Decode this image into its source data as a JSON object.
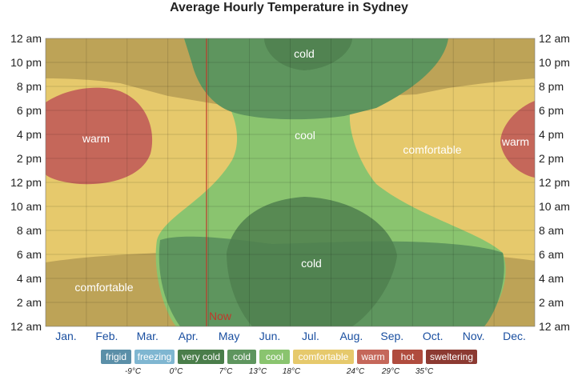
{
  "title": "Average Hourly Temperature in Sydney",
  "colors": {
    "comfortable": "#e6c96c",
    "warm": "#c5675a",
    "cool": "#8ac46f",
    "cold": "#5e955e",
    "grid": "#9c8a52"
  },
  "chart_data": {
    "type": "heatmap",
    "title": "Average Hourly Temperature in Sydney",
    "categories": [
      "Jan.",
      "Feb.",
      "Mar.",
      "Apr.",
      "May",
      "Jun.",
      "Jul.",
      "Aug.",
      "Sep.",
      "Oct.",
      "Nov.",
      "Dec."
    ],
    "y_ticks": [
      "12 am",
      "2 am",
      "4 am",
      "6 am",
      "8 am",
      "10 am",
      "12 pm",
      "2 pm",
      "4 pm",
      "6 pm",
      "8 pm",
      "10 pm",
      "12 am"
    ],
    "now_label": "Now",
    "regions": [
      {
        "label": "warm",
        "band": "warm"
      },
      {
        "label": "warm",
        "band": "warm"
      },
      {
        "label": "comfortable",
        "band": "comfortable"
      },
      {
        "label": "comfortable",
        "band": "comfortable"
      },
      {
        "label": "cool",
        "band": "cool"
      },
      {
        "label": "cold",
        "band": "cold"
      },
      {
        "label": "cold",
        "band": "cold"
      }
    ]
  },
  "legend": {
    "bands": [
      {
        "label": "frigid",
        "color": "#5b8fa8"
      },
      {
        "label": "freezing",
        "color": "#7fb6d1"
      },
      {
        "label": "very cold",
        "color": "#4a7d4a"
      },
      {
        "label": "cold",
        "color": "#5e955e"
      },
      {
        "label": "cool",
        "color": "#8ac46f"
      },
      {
        "label": "comfortable",
        "color": "#e6c96c"
      },
      {
        "label": "warm",
        "color": "#c5675a"
      },
      {
        "label": "hot",
        "color": "#b04c3e"
      },
      {
        "label": "sweltering",
        "color": "#8c3a32"
      }
    ],
    "thresholds": [
      "-9°C",
      "0°C",
      "7°C",
      "13°C",
      "18°C",
      "24°C",
      "29°C",
      "35°C"
    ]
  }
}
